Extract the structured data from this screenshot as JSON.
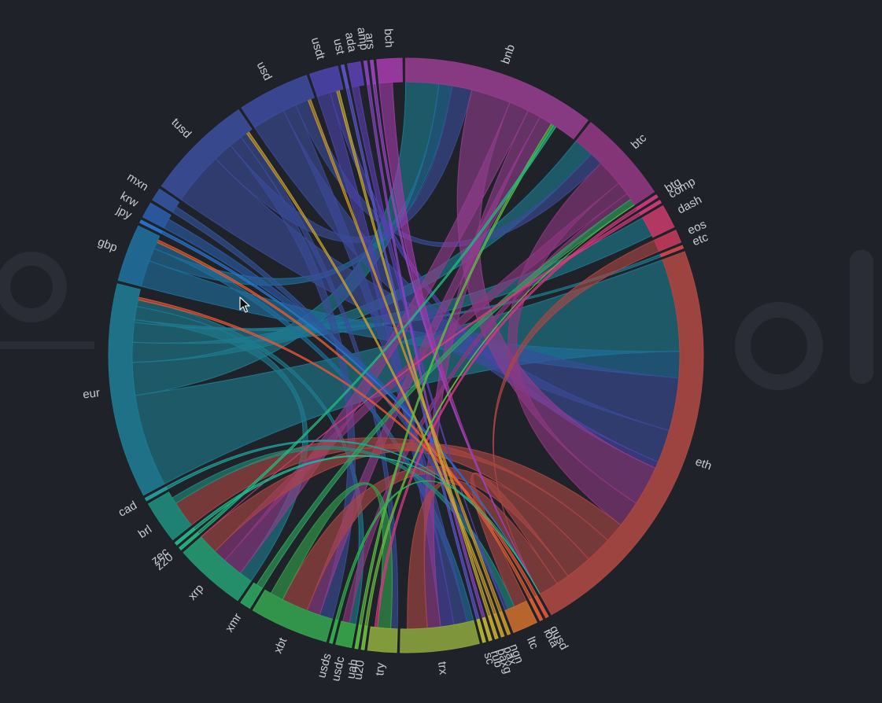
{
  "chart_data": {
    "type": "chord",
    "title": "",
    "groups": [
      {
        "name": "ust",
        "color": "#5a56c8",
        "value": 0.4
      },
      {
        "name": "ada",
        "color": "#5a3fb0",
        "value": 1.8
      },
      {
        "name": "amp",
        "color": "#8a45c0",
        "value": 0.4
      },
      {
        "name": "ars",
        "color": "#9a45c0",
        "value": 0.4
      },
      {
        "name": "bch",
        "color": "#a23aa8",
        "value": 3.5
      },
      {
        "name": "bnb",
        "color": "#923c8c",
        "value": 27
      },
      {
        "name": "btc",
        "color": "#8e3780",
        "value": 13
      },
      {
        "name": "btg",
        "color": "#d03a80",
        "value": 0.4
      },
      {
        "name": "comp",
        "color": "#d63a7c",
        "value": 0.4
      },
      {
        "name": "dash",
        "color": "#c23a68",
        "value": 3.3
      },
      {
        "name": "eos",
        "color": "#c23a5c",
        "value": 1.8
      },
      {
        "name": "etc",
        "color": "#d04a50",
        "value": 0.4
      },
      {
        "name": "eth",
        "color": "#ab4743",
        "value": 58
      },
      {
        "name": "gusd",
        "color": "#e0583a",
        "value": 0.4
      },
      {
        "name": "iota",
        "color": "#e06034",
        "value": 0.4
      },
      {
        "name": "ltc",
        "color": "#c86c2e",
        "value": 3.5
      },
      {
        "name": "ngn",
        "color": "#c8962e",
        "value": 0.4
      },
      {
        "name": "pax",
        "color": "#c8a030",
        "value": 0.4
      },
      {
        "name": "paxg",
        "color": "#c4aa30",
        "value": 0.4
      },
      {
        "name": "rub",
        "color": "#c2b432",
        "value": 0.4
      },
      {
        "name": "sc",
        "color": "#b8b834",
        "value": 0.4
      },
      {
        "name": "trx",
        "color": "#8aa23e",
        "value": 11
      },
      {
        "name": "try",
        "color": "#8ca83e",
        "value": 4
      },
      {
        "name": "u20",
        "color": "#6ebc42",
        "value": 0.4
      },
      {
        "name": "uah",
        "color": "#5ebe44",
        "value": 0.4
      },
      {
        "name": "usdc",
        "color": "#38a84a",
        "value": 2.2
      },
      {
        "name": "usds",
        "color": "#34b24e",
        "value": 0.4
      },
      {
        "name": "xbt",
        "color": "#34a04e",
        "value": 11
      },
      {
        "name": "xmr",
        "color": "#2ea460",
        "value": 1.5
      },
      {
        "name": "xrp",
        "color": "#239a70",
        "value": 10
      },
      {
        "name": "z20",
        "color": "#23b880",
        "value": 0.4
      },
      {
        "name": "zec",
        "color": "#23bc90",
        "value": 0.4
      },
      {
        "name": "brl",
        "color": "#1e8c7c",
        "value": 6
      },
      {
        "name": "cad",
        "color": "#22a2a0",
        "value": 0.4
      },
      {
        "name": "eur",
        "color": "#1e7a90",
        "value": 30
      },
      {
        "name": "gbp",
        "color": "#1f6f9c",
        "value": 8
      },
      {
        "name": "jpy",
        "color": "#2a76d0",
        "value": 0.4
      },
      {
        "name": "krw",
        "color": "#2c5ca8",
        "value": 2.2
      },
      {
        "name": "mxn",
        "color": "#34549c",
        "value": 1.8
      },
      {
        "name": "tusd",
        "color": "#3a4c98",
        "value": 15
      },
      {
        "name": "usd",
        "color": "#3c4a9a",
        "value": 10
      },
      {
        "name": "usdt",
        "color": "#4a44a8",
        "value": 4
      }
    ],
    "links": [
      {
        "source": "eur",
        "target": "eth",
        "value": 14
      },
      {
        "source": "eur",
        "target": "bnb",
        "value": 5
      },
      {
        "source": "eur",
        "target": "btc",
        "value": 3
      },
      {
        "source": "eur",
        "target": "dash",
        "value": 3
      },
      {
        "source": "eur",
        "target": "etc",
        "value": 0.4
      },
      {
        "source": "eur",
        "target": "xrp",
        "value": 2
      },
      {
        "source": "eur",
        "target": "usdc",
        "value": 1
      },
      {
        "source": "gbp",
        "target": "eth",
        "value": 4
      },
      {
        "source": "gbp",
        "target": "bnb",
        "value": 2
      },
      {
        "source": "gbp",
        "target": "trx",
        "value": 1
      },
      {
        "source": "tusd",
        "target": "eth",
        "value": 8
      },
      {
        "source": "tusd",
        "target": "bnb",
        "value": 3
      },
      {
        "source": "tusd",
        "target": "xbt",
        "value": 2
      },
      {
        "source": "tusd",
        "target": "try",
        "value": 1
      },
      {
        "source": "usd",
        "target": "eth",
        "value": 5
      },
      {
        "source": "usd",
        "target": "trx",
        "value": 2
      },
      {
        "source": "usd",
        "target": "btc",
        "value": 2
      },
      {
        "source": "usdt",
        "target": "trx",
        "value": 2
      },
      {
        "source": "usdt",
        "target": "eth",
        "value": 1
      },
      {
        "source": "bnb",
        "target": "eth",
        "value": 6
      },
      {
        "source": "bnb",
        "target": "xrp",
        "value": 3
      },
      {
        "source": "bnb",
        "target": "trx",
        "value": 2
      },
      {
        "source": "bnb",
        "target": "xbt",
        "value": 2
      },
      {
        "source": "btc",
        "target": "eth",
        "value": 4
      },
      {
        "source": "btc",
        "target": "xrp",
        "value": 2
      },
      {
        "source": "btc",
        "target": "usdc",
        "value": 1
      },
      {
        "source": "eth",
        "target": "xrp",
        "value": 3
      },
      {
        "source": "eth",
        "target": "brl",
        "value": 4
      },
      {
        "source": "eth",
        "target": "xbt",
        "value": 4
      },
      {
        "source": "eth",
        "target": "ltc",
        "value": 2
      },
      {
        "source": "eth",
        "target": "trx",
        "value": 3
      },
      {
        "source": "eth",
        "target": "eos",
        "value": 1.8
      },
      {
        "source": "brl",
        "target": "ltc",
        "value": 1
      },
      {
        "source": "xbt",
        "target": "try",
        "value": 2
      },
      {
        "source": "krw",
        "target": "eth",
        "value": 1.5
      },
      {
        "source": "mxn",
        "target": "ltc",
        "value": 1
      },
      {
        "source": "bch",
        "target": "eth",
        "value": 2
      },
      {
        "source": "ada",
        "target": "ltc",
        "value": 1
      },
      {
        "source": "xmr",
        "target": "btc",
        "value": 1
      },
      {
        "source": "cad",
        "target": "eth",
        "value": 0.4
      },
      {
        "source": "jpy",
        "target": "eth",
        "value": 0.4
      },
      {
        "source": "ust",
        "target": "sc",
        "value": 0.4
      },
      {
        "source": "amp",
        "target": "rub",
        "value": 0.4
      },
      {
        "source": "ars",
        "target": "eth",
        "value": 0.4
      },
      {
        "source": "btg",
        "target": "try",
        "value": 0.4
      },
      {
        "source": "comp",
        "target": "xrp",
        "value": 0.4
      },
      {
        "source": "gusd",
        "target": "eur",
        "value": 0.4
      },
      {
        "source": "iota",
        "target": "gbp",
        "value": 0.4
      },
      {
        "source": "ngn",
        "target": "usd",
        "value": 0.4
      },
      {
        "source": "pax",
        "target": "tusd",
        "value": 0.4
      },
      {
        "source": "paxg",
        "target": "usdt",
        "value": 0.4
      },
      {
        "source": "u20",
        "target": "btc",
        "value": 0.4
      },
      {
        "source": "uah",
        "target": "bnb",
        "value": 0.4
      },
      {
        "source": "usds",
        "target": "eth",
        "value": 0.4
      },
      {
        "source": "z20",
        "target": "bnb",
        "value": 0.4
      },
      {
        "source": "zec",
        "target": "eth",
        "value": 0.4
      }
    ],
    "legend": "none",
    "grid": false
  }
}
